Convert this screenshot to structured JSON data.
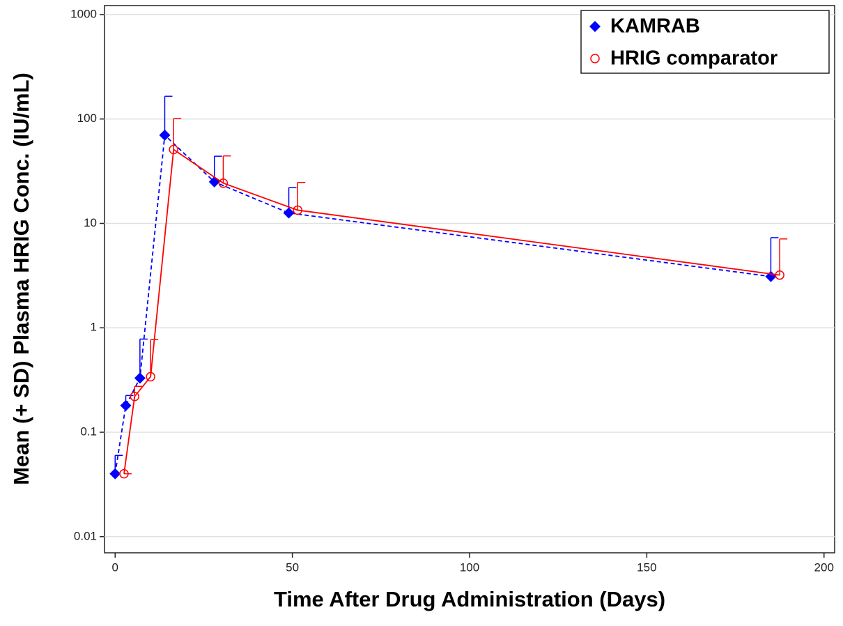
{
  "chart_data": {
    "type": "line",
    "x_label": "Time After Drug Administration (Days)",
    "y_label": "Mean  (+ SD)  Plasma HRIG Conc. (IU/mL)",
    "series": [
      {
        "name": "KAMRAB",
        "color": "#0000ff",
        "line_style": "dashed",
        "marker": "diamond",
        "x": [
          0,
          3,
          7,
          14,
          28,
          49,
          185
        ],
        "values": [
          0.04,
          0.18,
          0.33,
          70,
          25,
          12.6,
          3.1
        ],
        "errors": [
          0.02,
          0.045,
          0.45,
          95,
          19,
          9.4,
          4.2
        ]
      },
      {
        "name": "HRIG comparator",
        "color": "#ff0000",
        "line_style": "solid",
        "marker": "open-circle",
        "x": [
          2.5,
          5.5,
          10,
          16.5,
          30.5,
          51.5,
          187.5
        ],
        "values": [
          0.04,
          0.22,
          0.34,
          51,
          24.3,
          13.4,
          3.2
        ],
        "errors": [
          0,
          0.055,
          0.43,
          50,
          20,
          11.3,
          3.9
        ]
      }
    ],
    "xlim": [
      -3,
      203
    ],
    "xticks": [
      0,
      50,
      100,
      150,
      200
    ],
    "ylim": [
      0.007,
      1220
    ],
    "yticks": [
      0.01,
      0.1,
      1,
      10,
      100,
      1000
    ],
    "y_scale": "log",
    "grid": true,
    "legend_position": "top-right"
  }
}
